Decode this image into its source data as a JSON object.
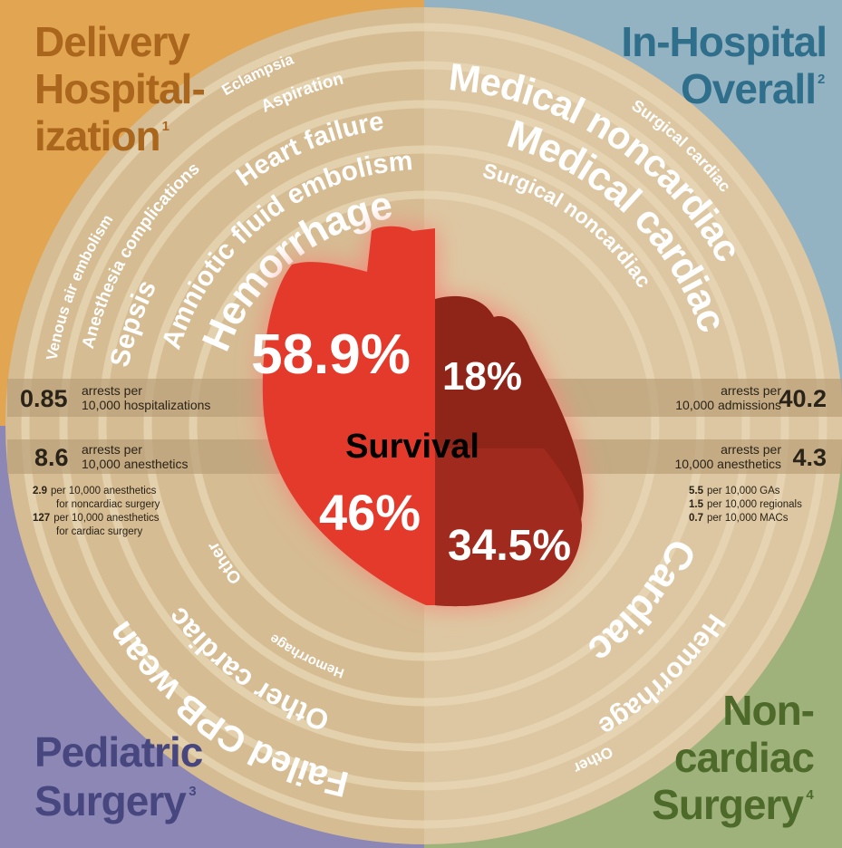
{
  "center_label": "Survival",
  "quadrants": [
    {
      "title_lines": [
        "Delivery",
        "Hospital-",
        "ization"
      ],
      "footnote": "1",
      "causes": [
        "Hemorrhage",
        "Amniotic fluid embolism",
        "Sepsis",
        "Heart failure",
        "Anesthesia complications",
        "Aspiration",
        "Venous air embolism",
        "Eclampsia"
      ],
      "survival": "58.9%",
      "stat": {
        "value": "0.85",
        "lines": [
          "arrests per",
          "10,000 hospitalizations"
        ]
      }
    },
    {
      "title_lines": [
        "In-Hospital",
        "Overall"
      ],
      "footnote": "2",
      "causes": [
        "Medical noncardiac",
        "Medical cardiac",
        "Surgical noncardiac",
        "Surgical cardiac"
      ],
      "survival": "18%",
      "stat": {
        "value": "40.2",
        "lines": [
          "arrests per",
          "10,000 admissions"
        ]
      }
    },
    {
      "title_lines": [
        "Pediatric",
        "Surgery"
      ],
      "footnote": "3",
      "causes": [
        "Failed CPB wean",
        "Other cardiac",
        "Hemorrhage",
        "Other"
      ],
      "survival": "46%",
      "stat": {
        "value": "8.6",
        "lines": [
          "arrests per",
          "10,000 anesthetics"
        ]
      },
      "details": [
        {
          "value": "2.9",
          "lines": [
            "per 10,000 anesthetics",
            "for noncardiac surgery"
          ]
        },
        {
          "value": "127",
          "lines": [
            "per 10,000 anesthetics",
            "for cardiac surgery"
          ]
        }
      ]
    },
    {
      "title_lines": [
        "Non-",
        "cardiac",
        "Surgery"
      ],
      "footnote": "4",
      "causes": [
        "Cardiac",
        "Hemorrhage",
        "Other"
      ],
      "survival": "34.5%",
      "stat": {
        "value": "4.3",
        "lines": [
          "arrests per",
          "10,000 anesthetics"
        ]
      },
      "details": [
        {
          "value": "5.5",
          "lines": [
            "per 10,000 GAs"
          ]
        },
        {
          "value": "1.5",
          "lines": [
            "per 10,000 regionals"
          ]
        },
        {
          "value": "0.7",
          "lines": [
            "per 10,000 MACs"
          ]
        }
      ]
    }
  ]
}
